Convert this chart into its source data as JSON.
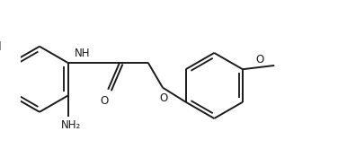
{
  "bg_color": "#ffffff",
  "line_color": "#1a1a1a",
  "line_width": 1.4,
  "font_size": 8.5,
  "figsize": [
    3.76,
    1.85
  ],
  "dpi": 100,
  "xlim": [
    -0.5,
    7.8
  ],
  "ylim": [
    -2.2,
    2.0
  ]
}
